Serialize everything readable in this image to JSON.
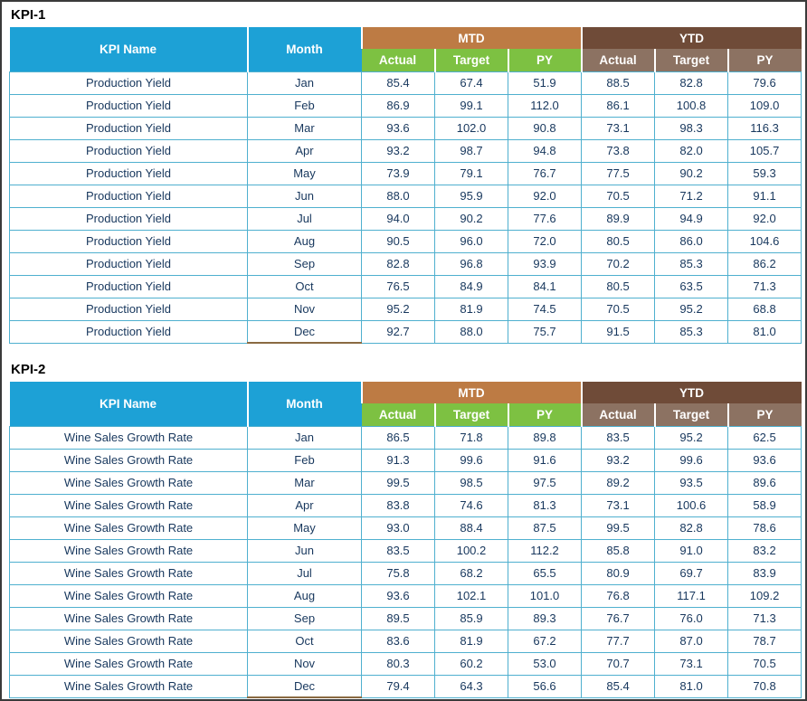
{
  "headers": {
    "kpi_name": "KPI Name",
    "month": "Month",
    "mtd": "MTD",
    "ytd": "YTD",
    "sub": [
      "Actual",
      "Target",
      "PY"
    ]
  },
  "colors": {
    "header_blue": "#1da1d6",
    "mtd_tan": "#bd7b44",
    "ytd_dark_brown": "#6f4b38",
    "sub_green": "#7dc142",
    "sub_taupe": "#8c7262",
    "grid_teal": "#4fb0cf",
    "value_text": "#17375d"
  },
  "kpi1": {
    "title": "KPI-1",
    "kpi_name": "Production Yield",
    "rows": [
      {
        "month": "Jan",
        "mtd": [
          "85.4",
          "67.4",
          "51.9"
        ],
        "ytd": [
          "88.5",
          "82.8",
          "79.6"
        ]
      },
      {
        "month": "Feb",
        "mtd": [
          "86.9",
          "99.1",
          "112.0"
        ],
        "ytd": [
          "86.1",
          "100.8",
          "109.0"
        ]
      },
      {
        "month": "Mar",
        "mtd": [
          "93.6",
          "102.0",
          "90.8"
        ],
        "ytd": [
          "73.1",
          "98.3",
          "116.3"
        ]
      },
      {
        "month": "Apr",
        "mtd": [
          "93.2",
          "98.7",
          "94.8"
        ],
        "ytd": [
          "73.8",
          "82.0",
          "105.7"
        ]
      },
      {
        "month": "May",
        "mtd": [
          "73.9",
          "79.1",
          "76.7"
        ],
        "ytd": [
          "77.5",
          "90.2",
          "59.3"
        ]
      },
      {
        "month": "Jun",
        "mtd": [
          "88.0",
          "95.9",
          "92.0"
        ],
        "ytd": [
          "70.5",
          "71.2",
          "91.1"
        ]
      },
      {
        "month": "Jul",
        "mtd": [
          "94.0",
          "90.2",
          "77.6"
        ],
        "ytd": [
          "89.9",
          "94.9",
          "92.0"
        ]
      },
      {
        "month": "Aug",
        "mtd": [
          "90.5",
          "96.0",
          "72.0"
        ],
        "ytd": [
          "80.5",
          "86.0",
          "104.6"
        ]
      },
      {
        "month": "Sep",
        "mtd": [
          "82.8",
          "96.8",
          "93.9"
        ],
        "ytd": [
          "70.2",
          "85.3",
          "86.2"
        ]
      },
      {
        "month": "Oct",
        "mtd": [
          "76.5",
          "84.9",
          "84.1"
        ],
        "ytd": [
          "80.5",
          "63.5",
          "71.3"
        ]
      },
      {
        "month": "Nov",
        "mtd": [
          "95.2",
          "81.9",
          "74.5"
        ],
        "ytd": [
          "70.5",
          "95.2",
          "68.8"
        ]
      },
      {
        "month": "Dec",
        "mtd": [
          "92.7",
          "88.0",
          "75.7"
        ],
        "ytd": [
          "91.5",
          "85.3",
          "81.0"
        ]
      }
    ]
  },
  "kpi2": {
    "title": "KPI-2",
    "kpi_name": "Wine Sales Growth Rate",
    "rows": [
      {
        "month": "Jan",
        "mtd": [
          "86.5",
          "71.8",
          "89.8"
        ],
        "ytd": [
          "83.5",
          "95.2",
          "62.5"
        ]
      },
      {
        "month": "Feb",
        "mtd": [
          "91.3",
          "99.6",
          "91.6"
        ],
        "ytd": [
          "93.2",
          "99.6",
          "93.6"
        ]
      },
      {
        "month": "Mar",
        "mtd": [
          "99.5",
          "98.5",
          "97.5"
        ],
        "ytd": [
          "89.2",
          "93.5",
          "89.6"
        ]
      },
      {
        "month": "Apr",
        "mtd": [
          "83.8",
          "74.6",
          "81.3"
        ],
        "ytd": [
          "73.1",
          "100.6",
          "58.9"
        ]
      },
      {
        "month": "May",
        "mtd": [
          "93.0",
          "88.4",
          "87.5"
        ],
        "ytd": [
          "99.5",
          "82.8",
          "78.6"
        ]
      },
      {
        "month": "Jun",
        "mtd": [
          "83.5",
          "100.2",
          "112.2"
        ],
        "ytd": [
          "85.8",
          "91.0",
          "83.2"
        ]
      },
      {
        "month": "Jul",
        "mtd": [
          "75.8",
          "68.2",
          "65.5"
        ],
        "ytd": [
          "80.9",
          "69.7",
          "83.9"
        ]
      },
      {
        "month": "Aug",
        "mtd": [
          "93.6",
          "102.1",
          "101.0"
        ],
        "ytd": [
          "76.8",
          "117.1",
          "109.2"
        ]
      },
      {
        "month": "Sep",
        "mtd": [
          "89.5",
          "85.9",
          "89.3"
        ],
        "ytd": [
          "76.7",
          "76.0",
          "71.3"
        ]
      },
      {
        "month": "Oct",
        "mtd": [
          "83.6",
          "81.9",
          "67.2"
        ],
        "ytd": [
          "77.7",
          "87.0",
          "78.7"
        ]
      },
      {
        "month": "Nov",
        "mtd": [
          "80.3",
          "60.2",
          "53.0"
        ],
        "ytd": [
          "70.7",
          "73.1",
          "70.5"
        ]
      },
      {
        "month": "Dec",
        "mtd": [
          "79.4",
          "64.3",
          "56.6"
        ],
        "ytd": [
          "85.4",
          "81.0",
          "70.8"
        ]
      }
    ]
  }
}
